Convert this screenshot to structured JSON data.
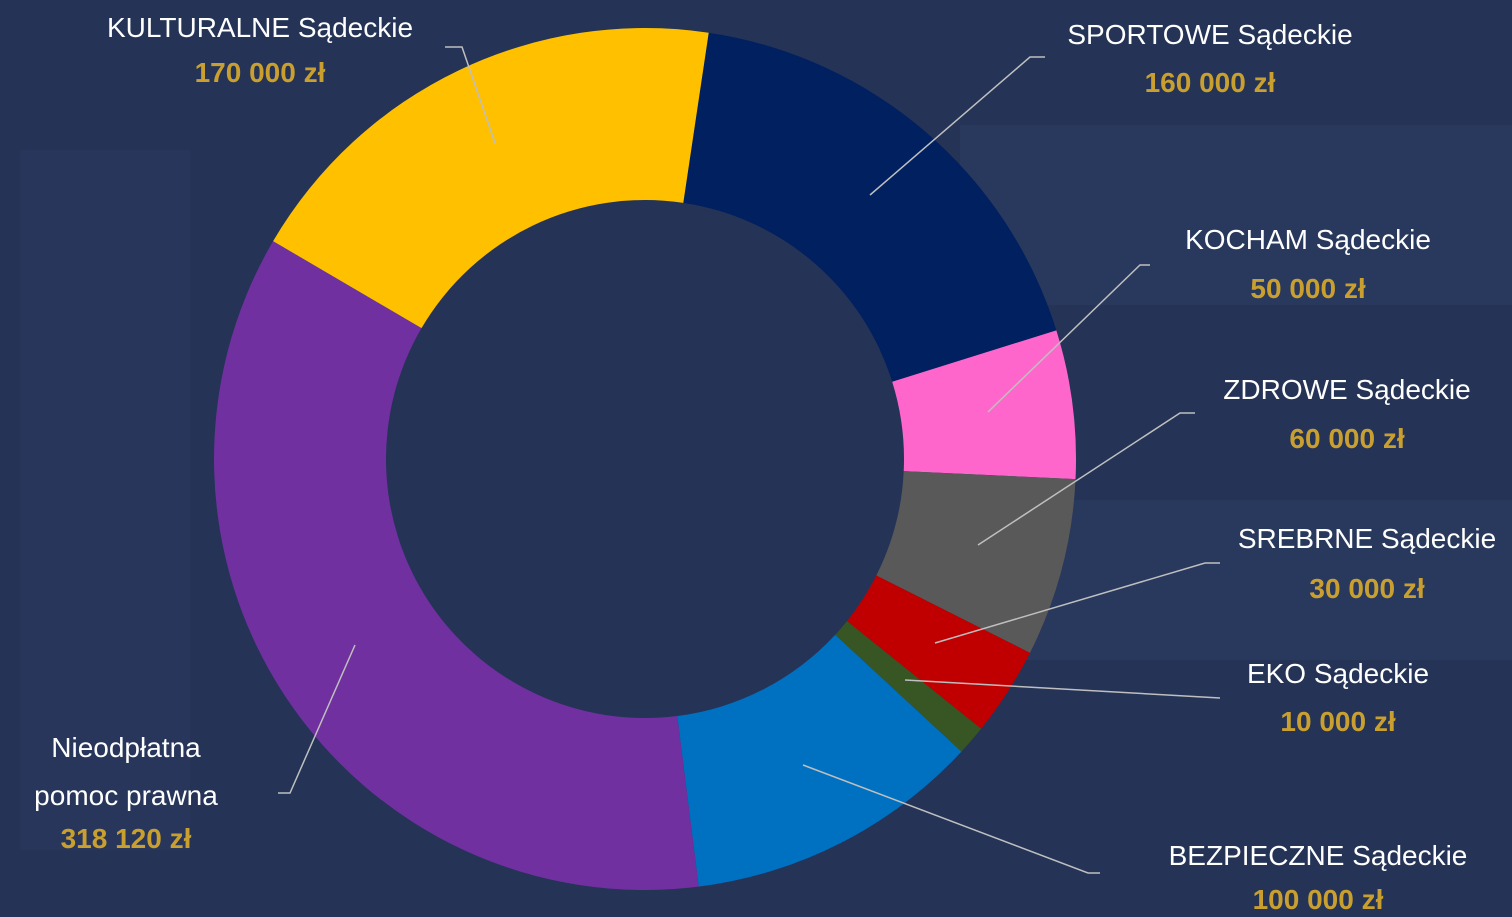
{
  "chart_data": {
    "type": "donut",
    "categories": [
      "SPORTOWE Sądeckie",
      "KOCHAM Sądeckie",
      "ZDROWE Sądeckie",
      "SREBRNE Sądeckie",
      "EKO Sądeckie",
      "BEZPIECZNE Sądeckie",
      "Nieodpłatna pomoc prawna",
      "KULTURALNE Sądeckie"
    ],
    "values": [
      160000,
      50000,
      60000,
      30000,
      10000,
      100000,
      318120,
      170000
    ],
    "value_labels": [
      "160 000 zł",
      "50 000 zł",
      "60 000 zł",
      "30 000 zł",
      "10 000 zł",
      "100 000 zł",
      "318 120 zł",
      "170 000 zł"
    ],
    "colors": [
      "#002060",
      "#ff66cc",
      "#595959",
      "#c00000",
      "#375623",
      "#0070c0",
      "#7030a0",
      "#ffc000"
    ]
  }
}
